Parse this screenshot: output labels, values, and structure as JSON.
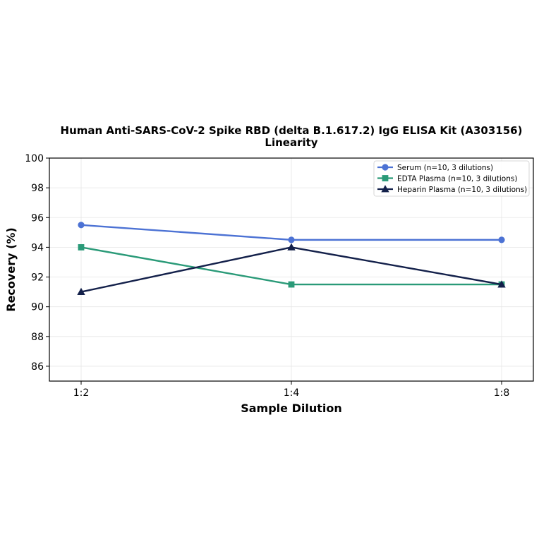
{
  "chart_data": {
    "type": "line",
    "title": "Human Anti-SARS-CoV-2 Spike RBD (delta B.1.617.2) IgG ELISA Kit (A303156)",
    "subtitle": "Linearity",
    "xlabel": "Sample Dilution",
    "ylabel": "Recovery (%)",
    "categories": [
      "1:2",
      "1:4",
      "1:8"
    ],
    "ylim": [
      85,
      100
    ],
    "yticks": [
      86,
      88,
      90,
      92,
      94,
      96,
      98,
      100
    ],
    "grid": true,
    "legend_position": "top-right",
    "series": [
      {
        "name": "Serum (n=10, 3 dilutions)",
        "values": [
          95.5,
          94.5,
          94.5
        ],
        "color": "#4c72d4",
        "marker": "circle"
      },
      {
        "name": "EDTA Plasma (n=10, 3 dilutions)",
        "values": [
          94.0,
          91.5,
          91.5
        ],
        "color": "#2a9a78",
        "marker": "square"
      },
      {
        "name": "Heparin Plasma (n=10, 3 dilutions)",
        "values": [
          91.0,
          94.0,
          91.5
        ],
        "color": "#13204a",
        "marker": "triangle"
      }
    ]
  }
}
